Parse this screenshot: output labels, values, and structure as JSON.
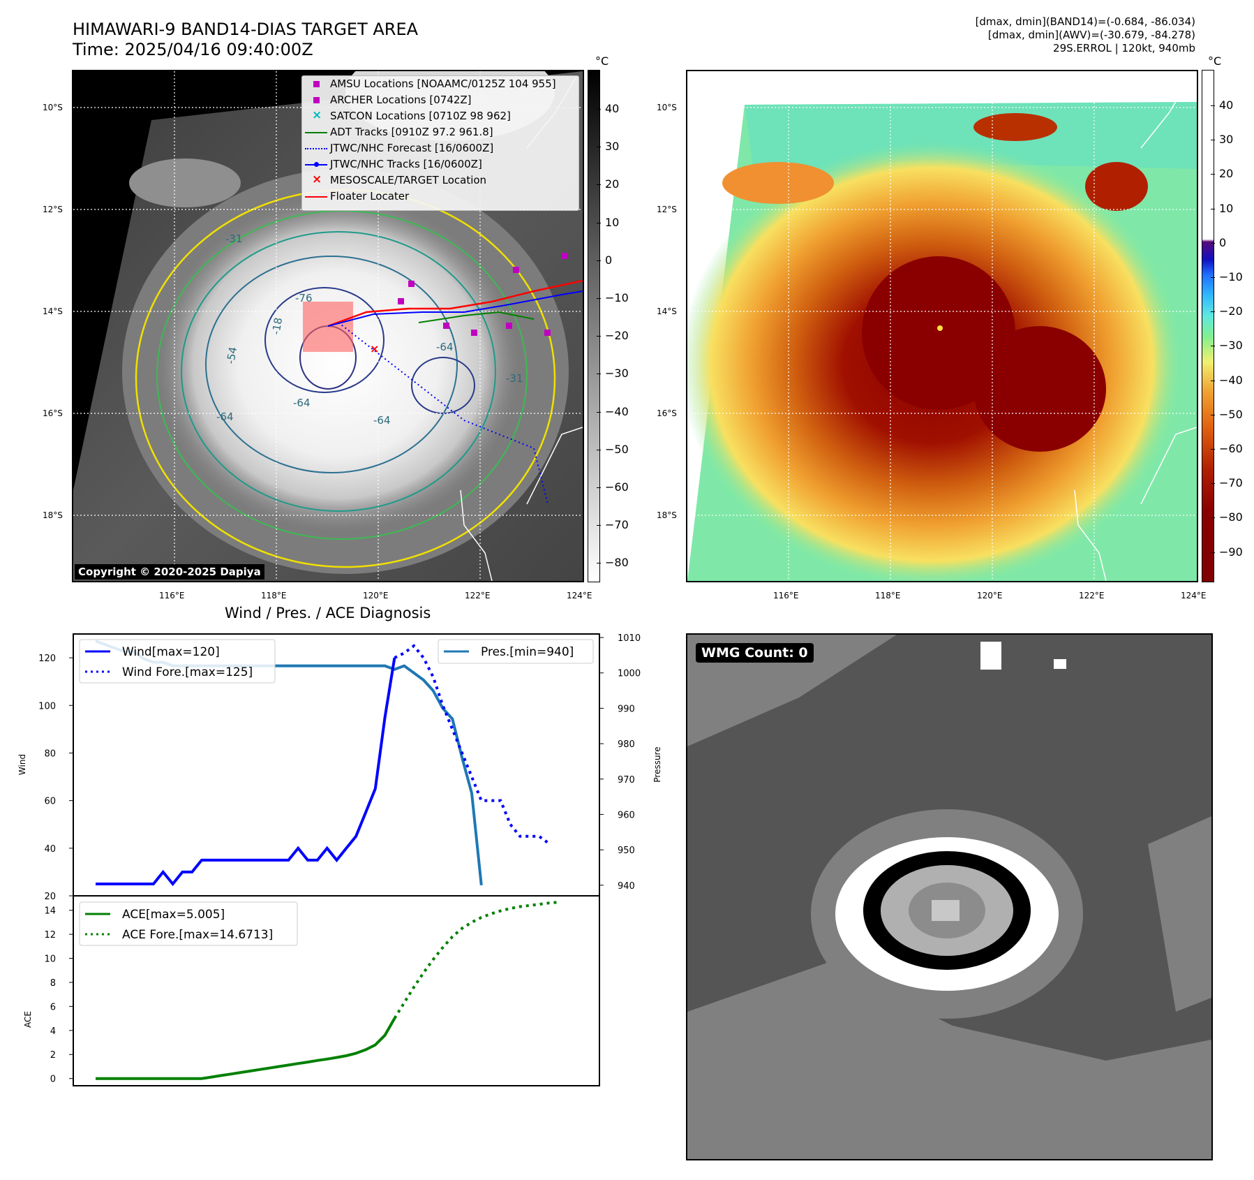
{
  "header": {
    "title_line1": "HIMAWARI-9 BAND14-DIAS TARGET AREA",
    "title_line2": "Time: 2025/04/16 09:40:00Z",
    "info_line1": "[dmax, dmin](BAND14)=(-0.684, -86.034)",
    "info_line2": "[dmax, dmin](AWV)=(-30.679, -84.278)",
    "info_line3": "29S.ERROL | 120kt, 940mb"
  },
  "map_axes": {
    "lat_labels": [
      "10°S",
      "12°S",
      "14°S",
      "16°S",
      "18°S"
    ],
    "lon_labels": [
      "116°E",
      "118°E",
      "120°E",
      "122°E",
      "124°E"
    ]
  },
  "ir_panel": {
    "copyright": "Copyright © 2020-2025 Dapiya",
    "colorbar_unit": "°C",
    "colorbar_ticks": [
      "40",
      "30",
      "20",
      "10",
      "0",
      "−10",
      "−20",
      "−30",
      "−40",
      "−50",
      "−60",
      "−70",
      "−80"
    ],
    "contour_labels": [
      "-31",
      "-76",
      "-54",
      "-64",
      "-64",
      "-64",
      "-31",
      "-18",
      "-64"
    ],
    "legend": [
      {
        "label": "AMSU Locations [NOAAMC/0125Z 104 955]",
        "symbol": "magenta-square",
        "color": "#c000c0"
      },
      {
        "label": "ARCHER Locations [0742Z]",
        "symbol": "magenta-square",
        "color": "#c000c0"
      },
      {
        "label": "SATCON Locations [0710Z 98 962]",
        "symbol": "cyan-x",
        "color": "#00b8c0"
      },
      {
        "label": "ADT Tracks [0910Z 97.2 961.8]",
        "symbol": "green-line",
        "color": "#008000"
      },
      {
        "label": "JTWC/NHC Forecast [16/0600Z]",
        "symbol": "blue-dotted-line",
        "color": "#0000ff"
      },
      {
        "label": "JTWC/NHC Tracks [16/0600Z]",
        "symbol": "blue-line-dot",
        "color": "#0000ff"
      },
      {
        "label": "MESOSCALE/TARGET Location",
        "symbol": "red-x",
        "color": "#ff0000"
      },
      {
        "label": "Floater Locater",
        "symbol": "red-line",
        "color": "#ff0000"
      }
    ]
  },
  "color_panel": {
    "colorbar_unit": "°C",
    "colorbar_ticks": [
      "40",
      "30",
      "20",
      "10",
      "0",
      "−10",
      "−20",
      "−30",
      "−40",
      "−50",
      "−60",
      "−70",
      "−80",
      "−90"
    ]
  },
  "wmg_panel": {
    "label": "WMG Count: 0"
  },
  "chart_data": [
    {
      "type": "line",
      "title": "Wind / Pres. / ACE Diagnosis",
      "ylabel": "Wind",
      "ylabel_right": "Pressure",
      "ylim": [
        20,
        130
      ],
      "ylim_right": [
        937,
        1011
      ],
      "y_ticks": [
        20,
        40,
        60,
        80,
        100,
        120
      ],
      "y_ticks_right": [
        940,
        950,
        960,
        970,
        980,
        990,
        1000,
        1010
      ],
      "x": [
        0,
        1,
        2,
        3,
        4,
        5,
        6,
        7,
        8,
        9,
        10,
        11,
        12,
        13,
        14,
        15,
        16,
        17,
        18,
        19,
        20,
        21,
        22,
        23,
        24,
        25,
        26,
        27,
        28,
        29,
        30,
        31,
        32,
        33,
        34,
        35,
        36,
        37,
        38,
        39,
        40,
        41,
        42,
        43,
        44,
        45,
        46,
        47,
        48,
        49,
        50
      ],
      "series": [
        {
          "name": "Wind[max=120]",
          "color": "#0000ff",
          "style": "solid",
          "values": [
            25,
            25,
            25,
            25,
            25,
            25,
            25,
            30,
            25,
            30,
            30,
            35,
            35,
            35,
            35,
            35,
            35,
            35,
            35,
            35,
            35,
            40,
            35,
            35,
            40,
            35,
            40,
            45,
            55,
            65,
            95,
            120,
            null,
            null,
            null,
            null,
            null,
            null,
            null,
            null,
            null,
            null,
            null,
            null,
            null,
            null,
            null,
            null,
            null,
            null,
            null
          ]
        },
        {
          "name": "Wind Fore.[max=125]",
          "color": "#0000ff",
          "style": "dotted",
          "values": [
            null,
            null,
            null,
            null,
            null,
            null,
            null,
            null,
            null,
            null,
            null,
            null,
            null,
            null,
            null,
            null,
            null,
            null,
            null,
            null,
            null,
            null,
            null,
            null,
            null,
            null,
            null,
            null,
            null,
            null,
            null,
            120,
            122,
            125,
            120,
            112,
            100,
            90,
            80,
            70,
            60,
            60,
            60,
            50,
            45,
            45,
            45,
            42,
            null,
            null,
            null
          ]
        },
        {
          "name": "Pres.[min=940]",
          "color": "#1f77b4",
          "style": "solid",
          "axis": "right",
          "values": [
            1009,
            1008,
            1007,
            1006,
            1006,
            1004,
            1003,
            1003,
            1002,
            1002,
            1002,
            1002,
            1002,
            1002,
            1002,
            1002,
            1002,
            1002,
            1002,
            1002,
            1002,
            1002,
            1002,
            1002,
            1002,
            1002,
            1002,
            1002,
            1002,
            1002,
            1002,
            1001,
            1002,
            1000,
            998,
            995,
            990,
            987,
            976,
            966,
            940,
            null,
            null,
            null,
            null,
            null,
            null,
            null,
            null,
            null,
            null
          ]
        }
      ]
    },
    {
      "type": "line",
      "ylabel": "ACE",
      "ylim": [
        -0.6,
        15.2
      ],
      "y_ticks": [
        0,
        2,
        4,
        6,
        8,
        10,
        12,
        14
      ],
      "x": [
        0,
        1,
        2,
        3,
        4,
        5,
        6,
        7,
        8,
        9,
        10,
        11,
        12,
        13,
        14,
        15,
        16,
        17,
        18,
        19,
        20,
        21,
        22,
        23,
        24,
        25,
        26,
        27,
        28,
        29,
        30,
        31,
        32,
        33,
        34,
        35,
        36,
        37,
        38,
        39,
        40,
        41,
        42,
        43,
        44,
        45,
        46,
        47,
        48,
        49,
        50
      ],
      "series": [
        {
          "name": "ACE[max=5.005]",
          "color": "#008000",
          "style": "solid",
          "values": [
            0,
            0,
            0,
            0,
            0,
            0,
            0,
            0,
            0,
            0,
            0,
            0,
            0.12,
            0.25,
            0.37,
            0.5,
            0.62,
            0.75,
            0.87,
            1.0,
            1.12,
            1.25,
            1.37,
            1.5,
            1.62,
            1.75,
            1.9,
            2.1,
            2.4,
            2.8,
            3.6,
            5.005,
            null,
            null,
            null,
            null,
            null,
            null,
            null,
            null,
            null,
            null,
            null,
            null,
            null,
            null,
            null,
            null,
            null,
            null,
            null
          ]
        },
        {
          "name": "ACE Fore.[max=14.6713]",
          "color": "#008000",
          "style": "dotted",
          "values": [
            null,
            null,
            null,
            null,
            null,
            null,
            null,
            null,
            null,
            null,
            null,
            null,
            null,
            null,
            null,
            null,
            null,
            null,
            null,
            null,
            null,
            null,
            null,
            null,
            null,
            null,
            null,
            null,
            null,
            null,
            null,
            5.005,
            6.3,
            7.6,
            8.8,
            9.9,
            10.9,
            11.8,
            12.5,
            13.0,
            13.4,
            13.7,
            13.95,
            14.15,
            14.3,
            14.4,
            14.5,
            14.6,
            14.6713,
            null,
            null
          ]
        }
      ]
    }
  ]
}
